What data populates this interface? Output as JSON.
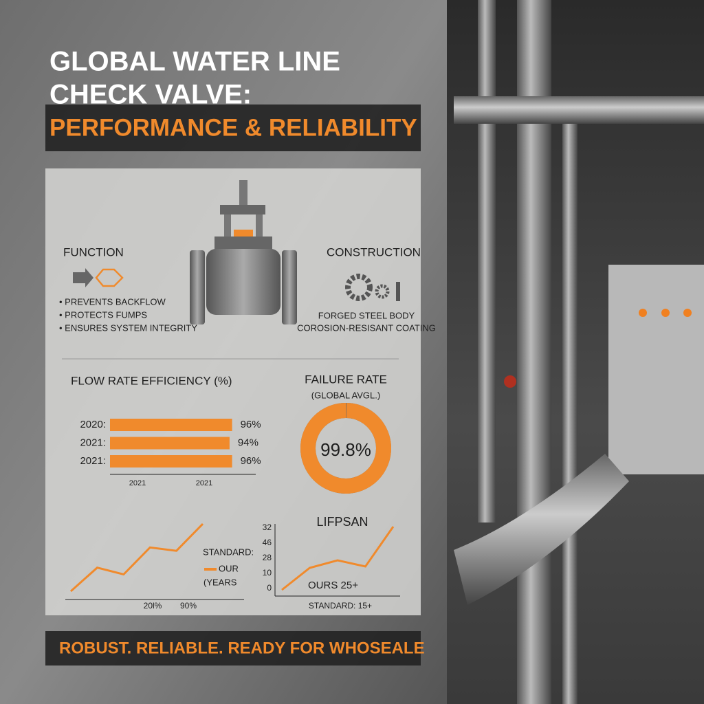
{
  "header": {
    "title_line1": "GLOBAL WATER LINE",
    "title_line2": "CHECK VALVE:",
    "subtitle": "PERFORMANCE & RELIABILITY"
  },
  "function": {
    "heading": "FUNCTION",
    "items": [
      "• PREVENTS BACKFLOW",
      "• PROTECTS FUMPS",
      "• ENSURES SYSTEM INTEGRITY"
    ]
  },
  "construction": {
    "heading": "CONSTRUCTION",
    "items": [
      "FORGED STEEL BODY",
      "COROSION-RESISANT COATING"
    ]
  },
  "flow_rate": {
    "title": "FLOW RATE EFFICIENCY (%)",
    "categories": [
      "2020:",
      "2021:",
      "2021:"
    ],
    "values": [
      96,
      94,
      96
    ],
    "value_labels": [
      "96%",
      "94%",
      "96%"
    ],
    "axis_labels": [
      "2021",
      "2021"
    ]
  },
  "failure_rate": {
    "title": "FAILURE RATE",
    "subtitle": "(GLOBAL AVGL.)",
    "value": 99.8,
    "value_label": "99.8%"
  },
  "trend": {
    "values": [
      0,
      35,
      25,
      65,
      60,
      100
    ],
    "axis_labels": [
      "20l%",
      "90%"
    ],
    "legend": [
      "STANDARD:",
      "OUR",
      "(YEARS"
    ]
  },
  "lifespan": {
    "title": "LIFPSAN",
    "tick_labels": [
      "32",
      "46",
      "28",
      "10",
      "0"
    ],
    "values": [
      0,
      32,
      43,
      34,
      92
    ],
    "ours_label": "OURS   25+",
    "standard_label": "STANDARD:  15+"
  },
  "footer": "ROBUST. RELIABLE. READY FOR WHOSEALE"
}
